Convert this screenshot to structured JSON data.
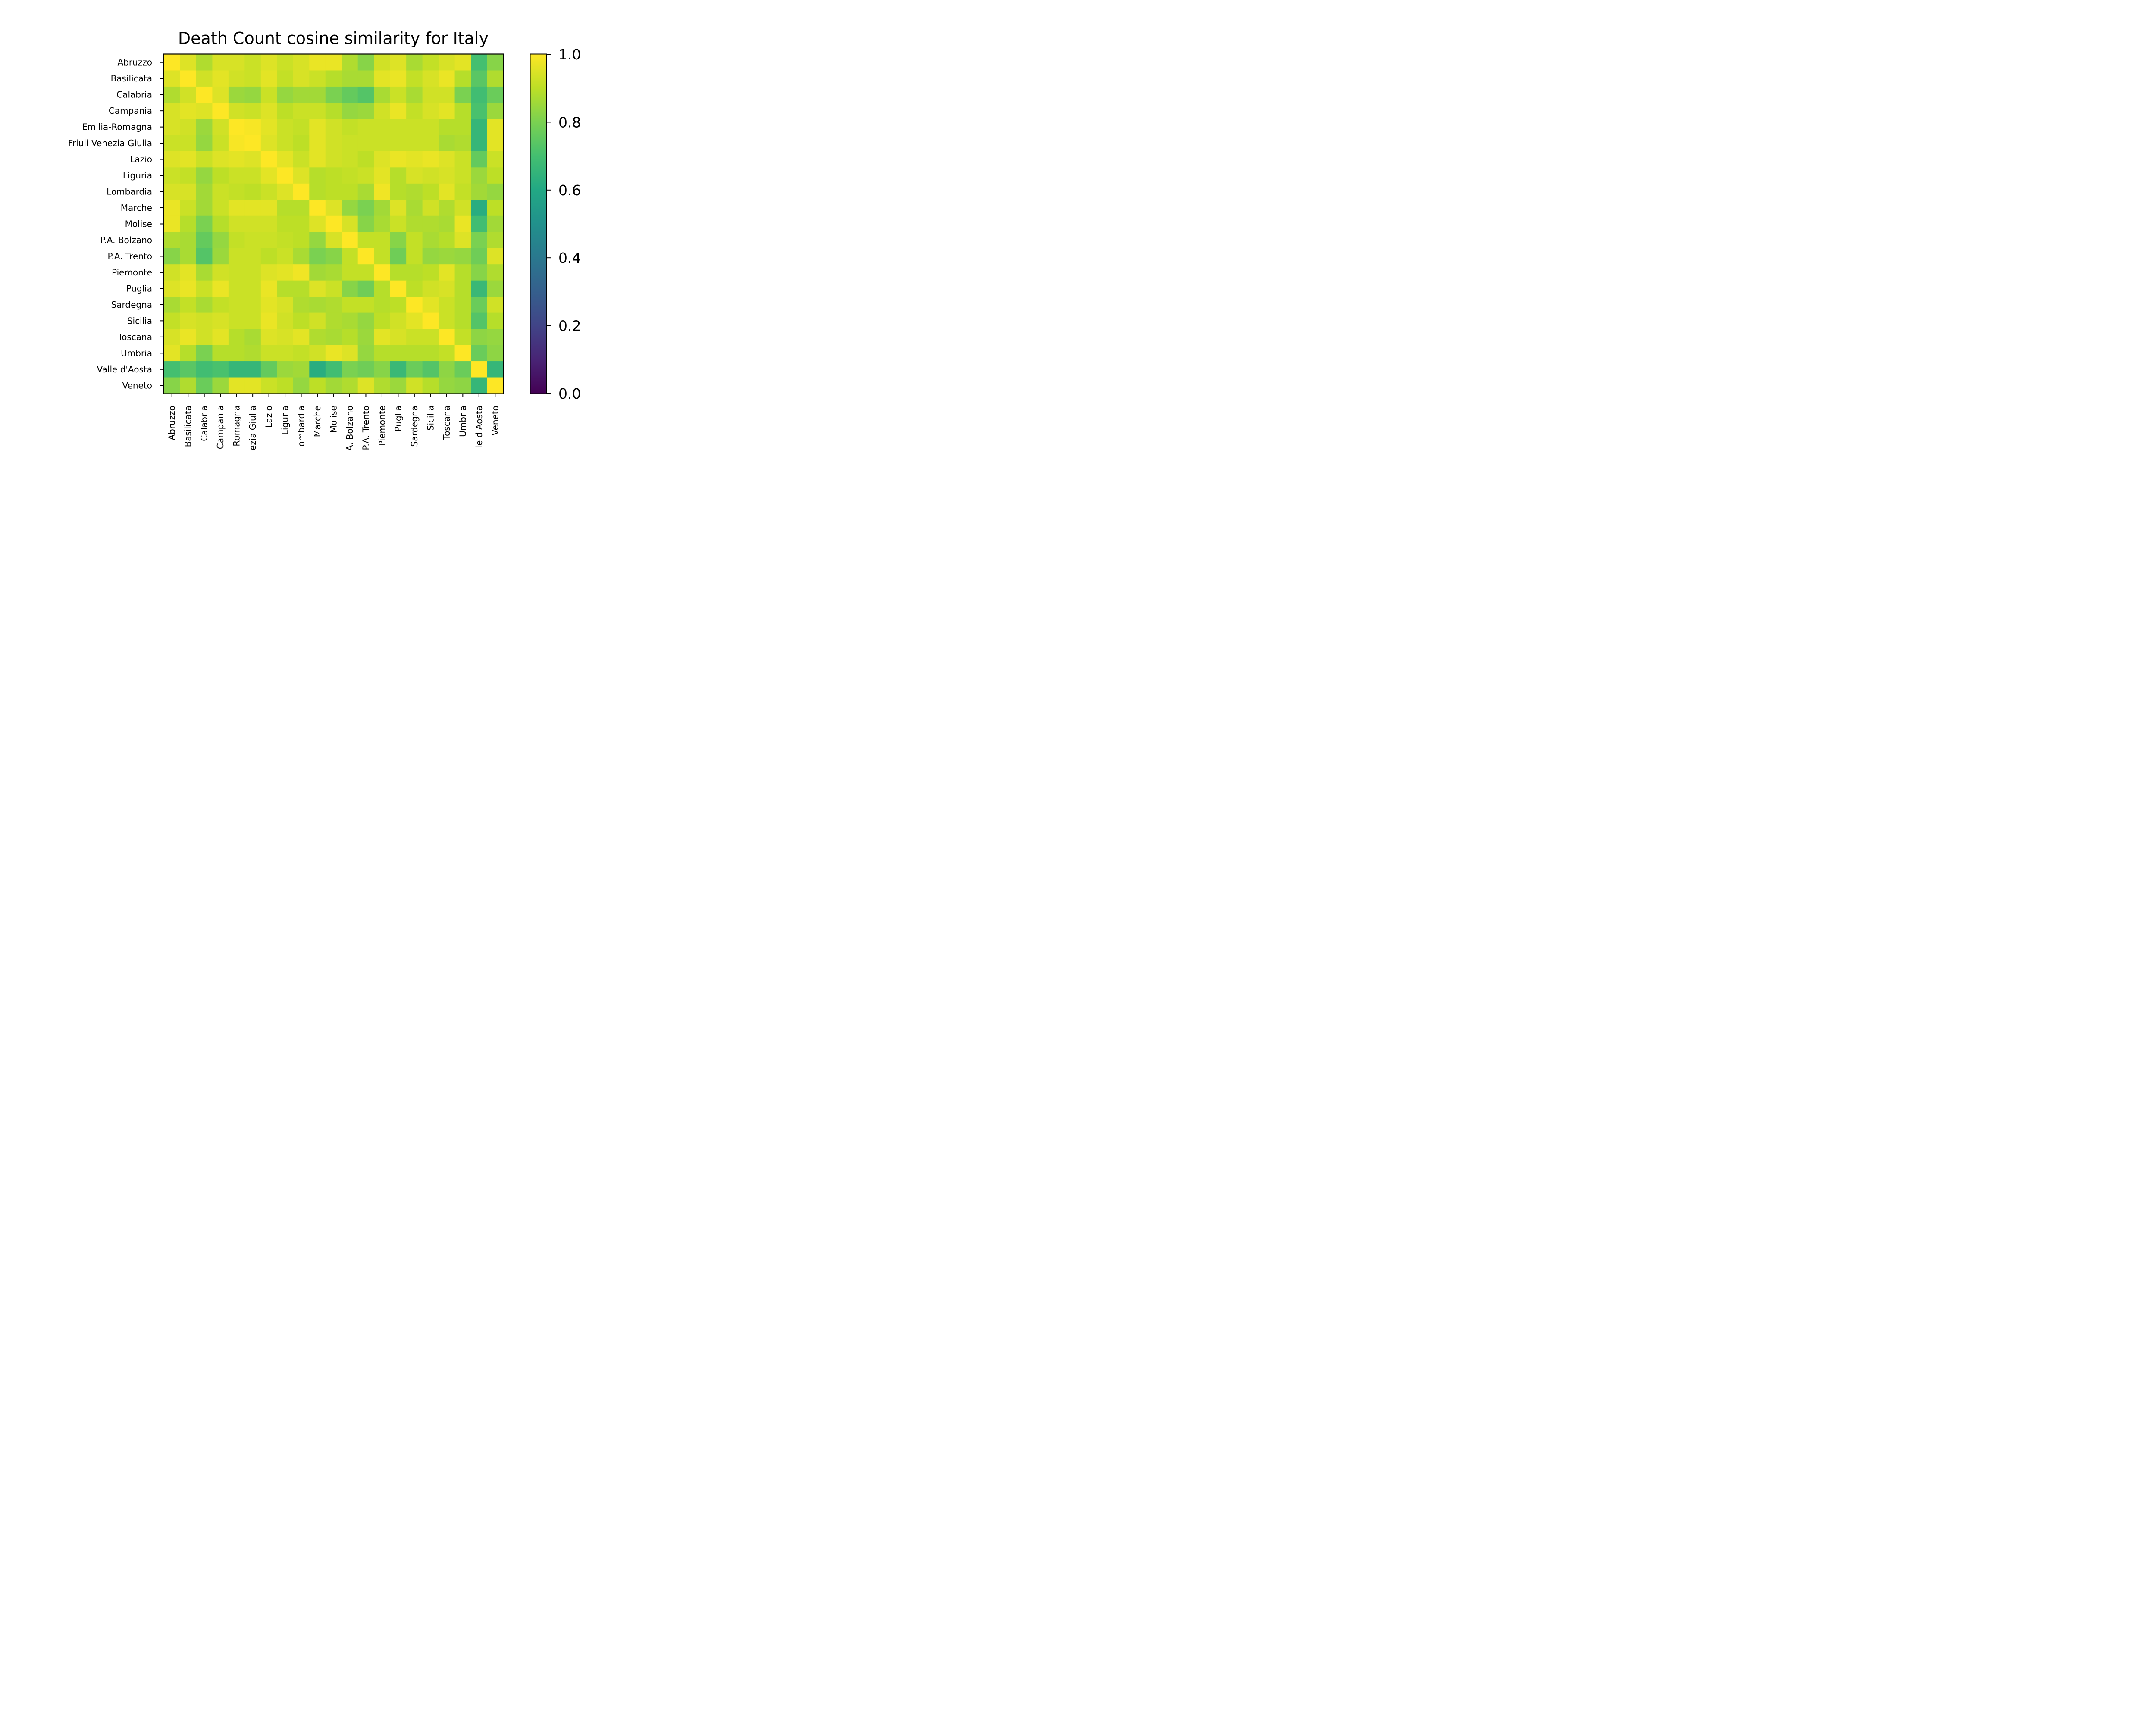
{
  "chart_data": {
    "type": "heatmap",
    "title": "Death Count cosine similarity for Italy",
    "xlabel": "",
    "ylabel": "",
    "categories": [
      "Abruzzo",
      "Basilicata",
      "Calabria",
      "Campania",
      "Emilia-Romagna",
      "Friuli Venezia Giulia",
      "Lazio",
      "Liguria",
      "Lombardia",
      "Marche",
      "Molise",
      "P.A. Bolzano",
      "P.A. Trento",
      "Piemonte",
      "Puglia",
      "Sardegna",
      "Sicilia",
      "Toscana",
      "Umbria",
      "Valle d'Aosta",
      "Veneto"
    ],
    "x_tick_labels": [
      "Abruzzo",
      "Basilicata",
      "Calabria",
      "Campania",
      "Romagna",
      "ezia Giulia",
      "Lazio",
      "Liguria",
      "ombardia",
      "Marche",
      "Molise",
      "A. Bolzano",
      "P.A. Trento",
      "Piemonte",
      "Puglia",
      "Sardegna",
      "Sicilia",
      "Toscana",
      "Umbria",
      "le d'Aosta",
      "Veneto"
    ],
    "values": [
      [
        1.0,
        0.95,
        0.88,
        0.94,
        0.94,
        0.92,
        0.95,
        0.92,
        0.94,
        0.97,
        0.97,
        0.88,
        0.82,
        0.93,
        0.95,
        0.87,
        0.91,
        0.94,
        0.96,
        0.7,
        0.82
      ],
      [
        0.95,
        1.0,
        0.93,
        0.96,
        0.93,
        0.92,
        0.96,
        0.91,
        0.94,
        0.92,
        0.89,
        0.87,
        0.87,
        0.96,
        0.97,
        0.91,
        0.94,
        0.97,
        0.89,
        0.74,
        0.88
      ],
      [
        0.88,
        0.93,
        1.0,
        0.95,
        0.85,
        0.84,
        0.92,
        0.84,
        0.86,
        0.86,
        0.8,
        0.76,
        0.73,
        0.87,
        0.92,
        0.87,
        0.93,
        0.93,
        0.8,
        0.69,
        0.77
      ],
      [
        0.94,
        0.96,
        0.95,
        1.0,
        0.93,
        0.92,
        0.95,
        0.9,
        0.92,
        0.92,
        0.89,
        0.84,
        0.85,
        0.93,
        0.97,
        0.91,
        0.94,
        0.96,
        0.89,
        0.71,
        0.85
      ],
      [
        0.94,
        0.93,
        0.85,
        0.93,
        1.0,
        0.99,
        0.96,
        0.92,
        0.91,
        0.96,
        0.93,
        0.91,
        0.92,
        0.92,
        0.92,
        0.92,
        0.92,
        0.89,
        0.89,
        0.66,
        0.96
      ],
      [
        0.92,
        0.92,
        0.84,
        0.92,
        0.99,
        1.0,
        0.95,
        0.92,
        0.9,
        0.96,
        0.93,
        0.92,
        0.92,
        0.92,
        0.92,
        0.92,
        0.92,
        0.87,
        0.88,
        0.66,
        0.96
      ],
      [
        0.95,
        0.96,
        0.92,
        0.95,
        0.96,
        0.95,
        1.0,
        0.96,
        0.92,
        0.96,
        0.93,
        0.92,
        0.9,
        0.95,
        0.97,
        0.96,
        0.97,
        0.95,
        0.92,
        0.76,
        0.92
      ],
      [
        0.92,
        0.91,
        0.84,
        0.9,
        0.92,
        0.92,
        0.96,
        1.0,
        0.95,
        0.89,
        0.9,
        0.91,
        0.92,
        0.96,
        0.89,
        0.94,
        0.93,
        0.94,
        0.92,
        0.85,
        0.9
      ],
      [
        0.94,
        0.94,
        0.86,
        0.92,
        0.91,
        0.9,
        0.92,
        0.95,
        1.0,
        0.89,
        0.9,
        0.9,
        0.87,
        0.98,
        0.89,
        0.88,
        0.9,
        0.96,
        0.91,
        0.86,
        0.84
      ],
      [
        0.97,
        0.92,
        0.86,
        0.92,
        0.96,
        0.96,
        0.96,
        0.89,
        0.89,
        1.0,
        0.95,
        0.84,
        0.8,
        0.86,
        0.95,
        0.87,
        0.93,
        0.88,
        0.93,
        0.62,
        0.9
      ],
      [
        0.97,
        0.89,
        0.8,
        0.89,
        0.93,
        0.93,
        0.93,
        0.9,
        0.9,
        0.95,
        1.0,
        0.94,
        0.82,
        0.87,
        0.92,
        0.88,
        0.88,
        0.87,
        0.97,
        0.69,
        0.86
      ],
      [
        0.88,
        0.87,
        0.76,
        0.84,
        0.91,
        0.92,
        0.92,
        0.91,
        0.9,
        0.84,
        0.94,
        1.0,
        0.91,
        0.91,
        0.82,
        0.91,
        0.87,
        0.89,
        0.95,
        0.8,
        0.88
      ],
      [
        0.82,
        0.87,
        0.73,
        0.85,
        0.92,
        0.92,
        0.9,
        0.92,
        0.87,
        0.8,
        0.82,
        0.91,
        1.0,
        0.91,
        0.78,
        0.91,
        0.84,
        0.85,
        0.84,
        0.78,
        0.95
      ],
      [
        0.93,
        0.96,
        0.87,
        0.93,
        0.92,
        0.92,
        0.95,
        0.96,
        0.98,
        0.86,
        0.87,
        0.91,
        0.91,
        1.0,
        0.89,
        0.89,
        0.9,
        0.96,
        0.89,
        0.82,
        0.88
      ],
      [
        0.95,
        0.97,
        0.92,
        0.97,
        0.92,
        0.92,
        0.97,
        0.89,
        0.89,
        0.95,
        0.92,
        0.82,
        0.78,
        0.89,
        1.0,
        0.9,
        0.93,
        0.94,
        0.89,
        0.67,
        0.85
      ],
      [
        0.87,
        0.91,
        0.87,
        0.91,
        0.92,
        0.92,
        0.96,
        0.94,
        0.88,
        0.87,
        0.88,
        0.91,
        0.91,
        0.89,
        0.9,
        1.0,
        0.96,
        0.92,
        0.89,
        0.77,
        0.93
      ],
      [
        0.91,
        0.94,
        0.93,
        0.94,
        0.92,
        0.92,
        0.97,
        0.93,
        0.9,
        0.93,
        0.88,
        0.87,
        0.84,
        0.9,
        0.93,
        0.96,
        1.0,
        0.92,
        0.89,
        0.73,
        0.89
      ],
      [
        0.94,
        0.97,
        0.93,
        0.96,
        0.89,
        0.87,
        0.95,
        0.94,
        0.96,
        0.88,
        0.87,
        0.89,
        0.85,
        0.96,
        0.94,
        0.92,
        0.92,
        1.0,
        0.91,
        0.83,
        0.84
      ],
      [
        0.96,
        0.89,
        0.8,
        0.89,
        0.89,
        0.88,
        0.92,
        0.92,
        0.91,
        0.93,
        0.97,
        0.95,
        0.84,
        0.89,
        0.89,
        0.89,
        0.89,
        0.91,
        1.0,
        0.77,
        0.83
      ],
      [
        0.7,
        0.74,
        0.69,
        0.71,
        0.66,
        0.66,
        0.76,
        0.85,
        0.86,
        0.62,
        0.69,
        0.8,
        0.78,
        0.82,
        0.67,
        0.77,
        0.73,
        0.83,
        0.77,
        1.0,
        0.66
      ],
      [
        0.82,
        0.88,
        0.77,
        0.85,
        0.96,
        0.96,
        0.92,
        0.9,
        0.84,
        0.9,
        0.86,
        0.88,
        0.95,
        0.88,
        0.85,
        0.93,
        0.89,
        0.84,
        0.83,
        0.66,
        1.0
      ]
    ],
    "colormap": "viridis",
    "vmin": 0.0,
    "vmax": 1.0,
    "colorbar_ticks": [
      "0.0",
      "0.2",
      "0.4",
      "0.6",
      "0.8",
      "1.0"
    ],
    "grid": false,
    "legend": "colorbar-right"
  }
}
